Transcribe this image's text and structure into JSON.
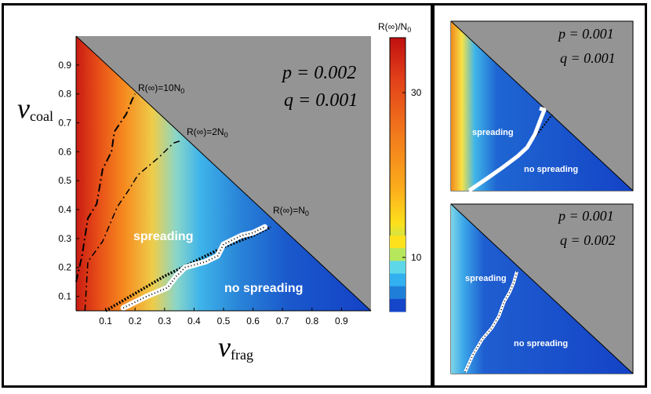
{
  "chart_data": [
    {
      "type": "heatmap",
      "panel": "main",
      "xlabel_main": "v",
      "xlabel_sub": "frag",
      "ylabel_main": "v",
      "ylabel_sub": "coal",
      "xlim": [
        0,
        1
      ],
      "ylim": [
        0.05,
        1
      ],
      "x_ticks": [
        "0.1",
        "0.2",
        "0.3",
        "0.4",
        "0.5",
        "0.6",
        "0.7",
        "0.8",
        "0.9"
      ],
      "y_ticks": [
        "0.1",
        "0.2",
        "0.3",
        "0.4",
        "0.5",
        "0.6",
        "0.7",
        "0.8",
        "0.9"
      ],
      "p_label": "p = 0.002",
      "q_label": "q = 0.001",
      "region_labels": {
        "spreading": "spreading",
        "no_spreading": "no spreading"
      },
      "contours": [
        {
          "label": "R(∞)=10N",
          "sub": "0",
          "points": [
            [
              0.0,
              0.15
            ],
            [
              0.02,
              0.24
            ],
            [
              0.04,
              0.37
            ],
            [
              0.07,
              0.42
            ],
            [
              0.09,
              0.54
            ],
            [
              0.12,
              0.6
            ],
            [
              0.13,
              0.67
            ],
            [
              0.17,
              0.73
            ],
            [
              0.19,
              0.78
            ],
            [
              0.2,
              0.8
            ]
          ]
        },
        {
          "label": "R(∞)=2N",
          "sub": "0",
          "points": [
            [
              0.03,
              0.05
            ],
            [
              0.04,
              0.22
            ],
            [
              0.09,
              0.29
            ],
            [
              0.14,
              0.41
            ],
            [
              0.18,
              0.47
            ],
            [
              0.21,
              0.52
            ],
            [
              0.28,
              0.58
            ],
            [
              0.33,
              0.63
            ],
            [
              0.36,
              0.64
            ]
          ]
        },
        {
          "label": "R(∞)=N",
          "sub": "0",
          "points": [
            [
              0.1,
              0.05
            ],
            [
              0.2,
              0.11
            ],
            [
              0.3,
              0.17
            ],
            [
              0.4,
              0.22
            ],
            [
              0.5,
              0.27
            ],
            [
              0.6,
              0.31
            ],
            [
              0.66,
              0.34
            ]
          ]
        }
      ],
      "threshold": [
        [
          0.16,
          0.06
        ],
        [
          0.24,
          0.1
        ],
        [
          0.31,
          0.13
        ],
        [
          0.34,
          0.17
        ],
        [
          0.37,
          0.2
        ],
        [
          0.44,
          0.22
        ],
        [
          0.48,
          0.24
        ],
        [
          0.5,
          0.28
        ],
        [
          0.56,
          0.31
        ],
        [
          0.6,
          0.32
        ],
        [
          0.64,
          0.34
        ]
      ]
    },
    {
      "type": "heatmap",
      "panel": "top-right",
      "p_label": "p = 0.001",
      "q_label": "q = 0.001",
      "region_labels": {
        "spreading": "spreading",
        "no_spreading": "no spreading"
      }
    },
    {
      "type": "heatmap",
      "panel": "bottom-right",
      "p_label": "p = 0.001",
      "q_label": "q = 0.002",
      "region_labels": {
        "spreading": "spreading",
        "no_spreading": "no spreading"
      }
    }
  ],
  "colorbar": {
    "title": "R(∞)/N",
    "title_sub": "0",
    "ticks": [
      "30",
      "10"
    ],
    "colors": [
      "#bf1010",
      "#e2401a",
      "#f2791c",
      "#fbac1c",
      "#fde11c",
      "#b6e65c",
      "#5ed8e8",
      "#32b0f0",
      "#1f7fd8",
      "#1546c9"
    ]
  }
}
